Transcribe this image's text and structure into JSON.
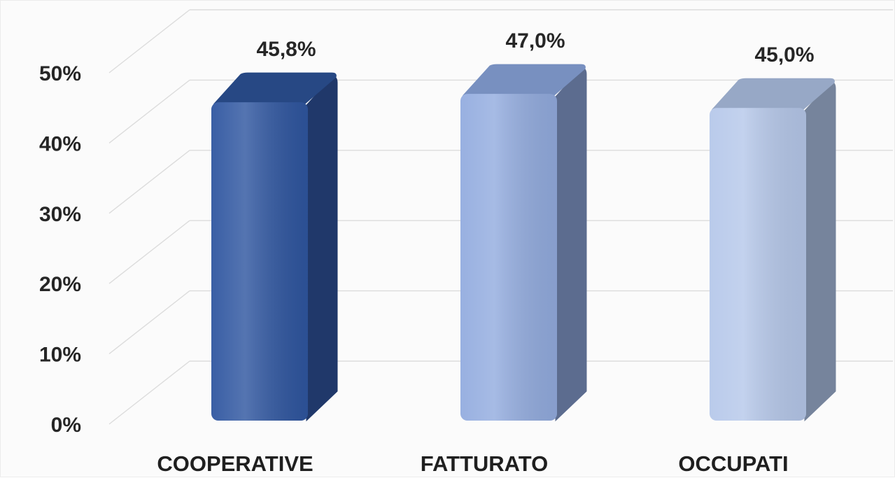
{
  "chart_data": {
    "type": "bar",
    "categories": [
      "COOPERATIVE",
      "FATTURATO",
      "OCCUPATI"
    ],
    "values": [
      45.8,
      47.0,
      45.0
    ],
    "data_labels": [
      "45,8%",
      "47,0%",
      "45,0%"
    ],
    "title": "",
    "xlabel": "",
    "ylabel": "",
    "ylim": [
      0,
      50
    ],
    "y_ticks": [
      0,
      10,
      20,
      30,
      40,
      50
    ],
    "y_tick_labels": [
      "0%",
      "10%",
      "20%",
      "30%",
      "40%",
      "50%"
    ],
    "grid": true,
    "legend": "none",
    "style": "3d",
    "bar_colors": [
      {
        "front": "#2f56a0",
        "side": "#20386a",
        "top": "#274884"
      },
      {
        "front": "#93acdf",
        "side": "#5c6c8f",
        "top": "#7890c0"
      },
      {
        "front": "#b6c8ea",
        "side": "#76849c",
        "top": "#97a8c6"
      }
    ],
    "grid_color": "#dcdcdc"
  }
}
